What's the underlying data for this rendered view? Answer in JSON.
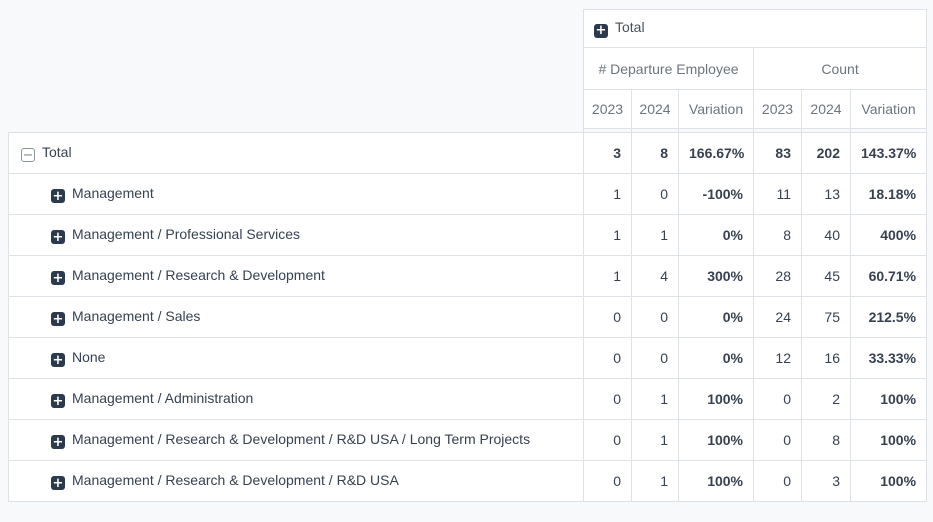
{
  "colors": {
    "page_background": "#f8f9fa",
    "cell_background": "#ffffff",
    "border": "#dee2e6",
    "positive_variation": "#28a745",
    "negative_variation": "#dc5047",
    "icon_fill": "#2c3a4e"
  },
  "pivot": {
    "column_root": {
      "label": "Total",
      "icon": "plus-square-icon"
    },
    "measures": [
      {
        "label": "# Departure Employee",
        "colspan": 3
      },
      {
        "label": "Count",
        "colspan": 3
      }
    ],
    "col_headers": [
      "2023",
      "2024",
      "Variation",
      "2023",
      "2024",
      "Variation"
    ],
    "rows": [
      {
        "label": "Total",
        "level": 0,
        "icon": "minus",
        "cells": [
          {
            "v": "3"
          },
          {
            "v": "8"
          },
          {
            "v": "166.67%",
            "trend": "up"
          },
          {
            "v": "83"
          },
          {
            "v": "202"
          },
          {
            "v": "143.37%",
            "trend": "up"
          }
        ]
      },
      {
        "label": "Management",
        "level": 1,
        "icon": "plus",
        "cells": [
          {
            "v": "1"
          },
          {
            "v": "0"
          },
          {
            "v": "-100%",
            "trend": "down"
          },
          {
            "v": "11"
          },
          {
            "v": "13"
          },
          {
            "v": "18.18%",
            "trend": "up"
          }
        ]
      },
      {
        "label": "Management / Professional Services",
        "level": 1,
        "icon": "plus",
        "cells": [
          {
            "v": "1"
          },
          {
            "v": "1"
          },
          {
            "v": "0%",
            "trend": "flat"
          },
          {
            "v": "8"
          },
          {
            "v": "40"
          },
          {
            "v": "400%",
            "trend": "up"
          }
        ]
      },
      {
        "label": "Management / Research & Development",
        "level": 1,
        "icon": "plus",
        "cells": [
          {
            "v": "1"
          },
          {
            "v": "4"
          },
          {
            "v": "300%",
            "trend": "up"
          },
          {
            "v": "28"
          },
          {
            "v": "45"
          },
          {
            "v": "60.71%",
            "trend": "up"
          }
        ]
      },
      {
        "label": "Management / Sales",
        "level": 1,
        "icon": "plus",
        "cells": [
          {
            "v": "0"
          },
          {
            "v": "0"
          },
          {
            "v": "0%",
            "trend": "flat"
          },
          {
            "v": "24"
          },
          {
            "v": "75"
          },
          {
            "v": "212.5%",
            "trend": "up"
          }
        ]
      },
      {
        "label": "None",
        "level": 1,
        "icon": "plus",
        "cells": [
          {
            "v": "0"
          },
          {
            "v": "0"
          },
          {
            "v": "0%",
            "trend": "flat"
          },
          {
            "v": "12"
          },
          {
            "v": "16"
          },
          {
            "v": "33.33%",
            "trend": "up"
          }
        ]
      },
      {
        "label": "Management / Administration",
        "level": 1,
        "icon": "plus",
        "cells": [
          {
            "v": "0"
          },
          {
            "v": "1"
          },
          {
            "v": "100%",
            "trend": "up"
          },
          {
            "v": "0"
          },
          {
            "v": "2"
          },
          {
            "v": "100%",
            "trend": "up"
          }
        ]
      },
      {
        "label": "Management / Research & Development / R&D USA / Long Term Projects",
        "level": 1,
        "icon": "plus",
        "cells": [
          {
            "v": "0"
          },
          {
            "v": "1"
          },
          {
            "v": "100%",
            "trend": "up"
          },
          {
            "v": "0"
          },
          {
            "v": "8"
          },
          {
            "v": "100%",
            "trend": "up"
          }
        ]
      },
      {
        "label": "Management / Research & Development / R&D USA",
        "level": 1,
        "icon": "plus",
        "cells": [
          {
            "v": "0"
          },
          {
            "v": "1"
          },
          {
            "v": "100%",
            "trend": "up"
          },
          {
            "v": "0"
          },
          {
            "v": "3"
          },
          {
            "v": "100%",
            "trend": "up"
          }
        ]
      }
    ]
  }
}
